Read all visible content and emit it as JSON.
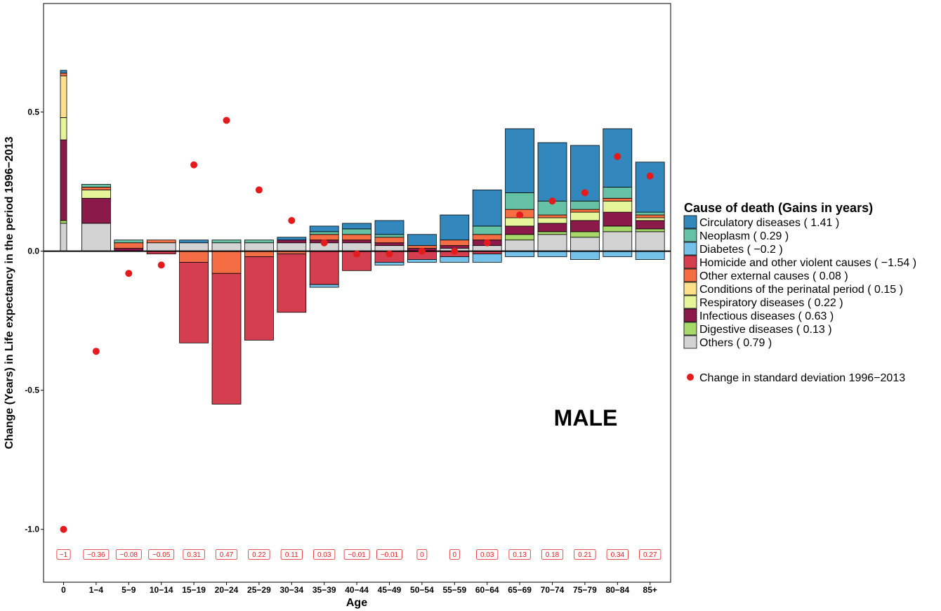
{
  "chart_data": {
    "type": "bar",
    "stacked": true,
    "panel_label": "MALE",
    "xlabel": "Age",
    "ylabel": "Change (Years) in Life expectancy in the period 1996−2013",
    "ylim": [
      -1.19,
      0.89
    ],
    "yticks": [
      0.5,
      0.0,
      -0.5,
      -1.0
    ],
    "ytick_labels": [
      "0.5",
      "0.0",
      "-0.5",
      "-1.0"
    ],
    "zero_line": true,
    "grid": false,
    "legend_position": "right",
    "legend_title": "Cause of death (Gains in years)",
    "categories": [
      "0",
      "1−4",
      "5−9",
      "10−14",
      "15−19",
      "20−24",
      "25−29",
      "30−34",
      "35−39",
      "40−44",
      "45−49",
      "50−54",
      "55−59",
      "60−64",
      "65−69",
      "70−74",
      "75−79",
      "80−84",
      "85+"
    ],
    "series": [
      {
        "name": "Others",
        "legend_value": "( 0.79 )",
        "color": "#d3d3d3",
        "values": [
          0.1,
          0.1,
          0.0,
          0.03,
          0.03,
          0.03,
          0.03,
          0.03,
          0.03,
          0.03,
          0.02,
          0.0,
          0.01,
          0.02,
          0.04,
          0.06,
          0.05,
          0.07,
          0.07
        ]
      },
      {
        "name": "Digestive diseases",
        "legend_value": "( 0.13 )",
        "color": "#a6d96a",
        "values": [
          0.01,
          0.0,
          0.0,
          0.0,
          0.0,
          0.0,
          0.0,
          0.0,
          0.0,
          0.0,
          0.0,
          0.0,
          0.0,
          0.0,
          0.02,
          0.01,
          0.02,
          0.02,
          0.01
        ]
      },
      {
        "name": "Infectious diseases",
        "legend_value": "( 0.63 )",
        "color": "#8b1a4a",
        "values": [
          0.29,
          0.09,
          0.01,
          0.0,
          0.0,
          0.0,
          0.0,
          0.01,
          0.01,
          0.01,
          0.01,
          0.01,
          0.01,
          0.02,
          0.03,
          0.03,
          0.04,
          0.05,
          0.03
        ]
      },
      {
        "name": "Respiratory diseases",
        "legend_value": "( 0.22 )",
        "color": "#e6f598",
        "values": [
          0.08,
          0.03,
          0.0,
          0.0,
          0.0,
          0.0,
          0.0,
          0.0,
          0.0,
          0.0,
          0.0,
          0.0,
          0.0,
          0.0,
          0.03,
          0.02,
          0.03,
          0.04,
          0.01
        ]
      },
      {
        "name": "Conditions of the perinatal period",
        "legend_value": "( 0.15 )",
        "color": "#fee08b",
        "values": [
          0.15,
          0.0,
          0.0,
          0.0,
          0.0,
          0.0,
          0.0,
          0.0,
          0.0,
          0.0,
          0.0,
          0.0,
          0.0,
          0.0,
          0.0,
          0.0,
          0.0,
          0.0,
          0.0
        ]
      },
      {
        "name": "Other external causes",
        "legend_value": "( 0.08 )",
        "color": "#f46d43",
        "values": [
          0.01,
          0.01,
          0.02,
          0.01,
          -0.04,
          -0.08,
          -0.02,
          -0.01,
          0.02,
          0.02,
          0.02,
          0.01,
          0.02,
          0.02,
          0.03,
          0.01,
          0.01,
          0.01,
          0.01
        ]
      },
      {
        "name": "Homicide and other violent causes",
        "legend_value": "( −1.54 )",
        "color": "#d53e4f",
        "values": [
          0.0,
          0.0,
          0.0,
          -0.01,
          -0.29,
          -0.47,
          -0.3,
          -0.21,
          -0.12,
          -0.07,
          -0.04,
          -0.03,
          -0.02,
          -0.01,
          0.0,
          0.0,
          0.0,
          0.0,
          0.0
        ]
      },
      {
        "name": "Diabetes",
        "legend_value": "( −0.2 )",
        "color": "#74c2ea",
        "values": [
          0.0,
          0.0,
          0.0,
          0.0,
          0.0,
          0.0,
          0.0,
          0.0,
          -0.01,
          0.0,
          -0.01,
          -0.01,
          -0.02,
          -0.03,
          -0.02,
          -0.02,
          -0.03,
          -0.02,
          -0.03
        ]
      },
      {
        "name": "Neoplasm",
        "legend_value": "( 0.29 )",
        "color": "#66c2a5",
        "values": [
          0.0,
          0.01,
          0.01,
          0.0,
          0.0,
          0.01,
          0.01,
          0.0,
          0.01,
          0.02,
          0.01,
          0.0,
          0.0,
          0.03,
          0.06,
          0.05,
          0.03,
          0.04,
          0.01
        ]
      },
      {
        "name": "Circulatory diseases",
        "legend_value": "( 1.41 )",
        "color": "#3288bd",
        "values": [
          0.01,
          0.0,
          0.0,
          0.0,
          0.01,
          0.0,
          0.0,
          0.01,
          0.02,
          0.02,
          0.05,
          0.04,
          0.09,
          0.13,
          0.23,
          0.21,
          0.2,
          0.21,
          0.18
        ]
      }
    ],
    "legend_order": [
      "Circulatory diseases",
      "Neoplasm",
      "Diabetes",
      "Homicide and other violent causes",
      "Other external causes",
      "Conditions of the perinatal period",
      "Respiratory diseases",
      "Infectious diseases",
      "Digestive diseases",
      "Others"
    ],
    "sd_series": {
      "name": "Change in standard deviation 1996−2013",
      "color": "#e41a1c",
      "values": [
        -1.0,
        -0.36,
        -0.08,
        -0.05,
        0.31,
        0.47,
        0.22,
        0.11,
        0.03,
        -0.01,
        -0.01,
        0,
        0,
        0.03,
        0.13,
        0.18,
        0.21,
        0.34,
        0.27
      ],
      "labels": [
        "−1",
        "−0.36",
        "−0.08",
        "−0.05",
        "0.31",
        "0.47",
        "0.22",
        "0.11",
        "0.03",
        "−0.01",
        "−0.01",
        "0",
        "0",
        "0.03",
        "0.13",
        "0.18",
        "0.21",
        "0.34",
        "0.27"
      ],
      "label_y": -1.09
    }
  }
}
